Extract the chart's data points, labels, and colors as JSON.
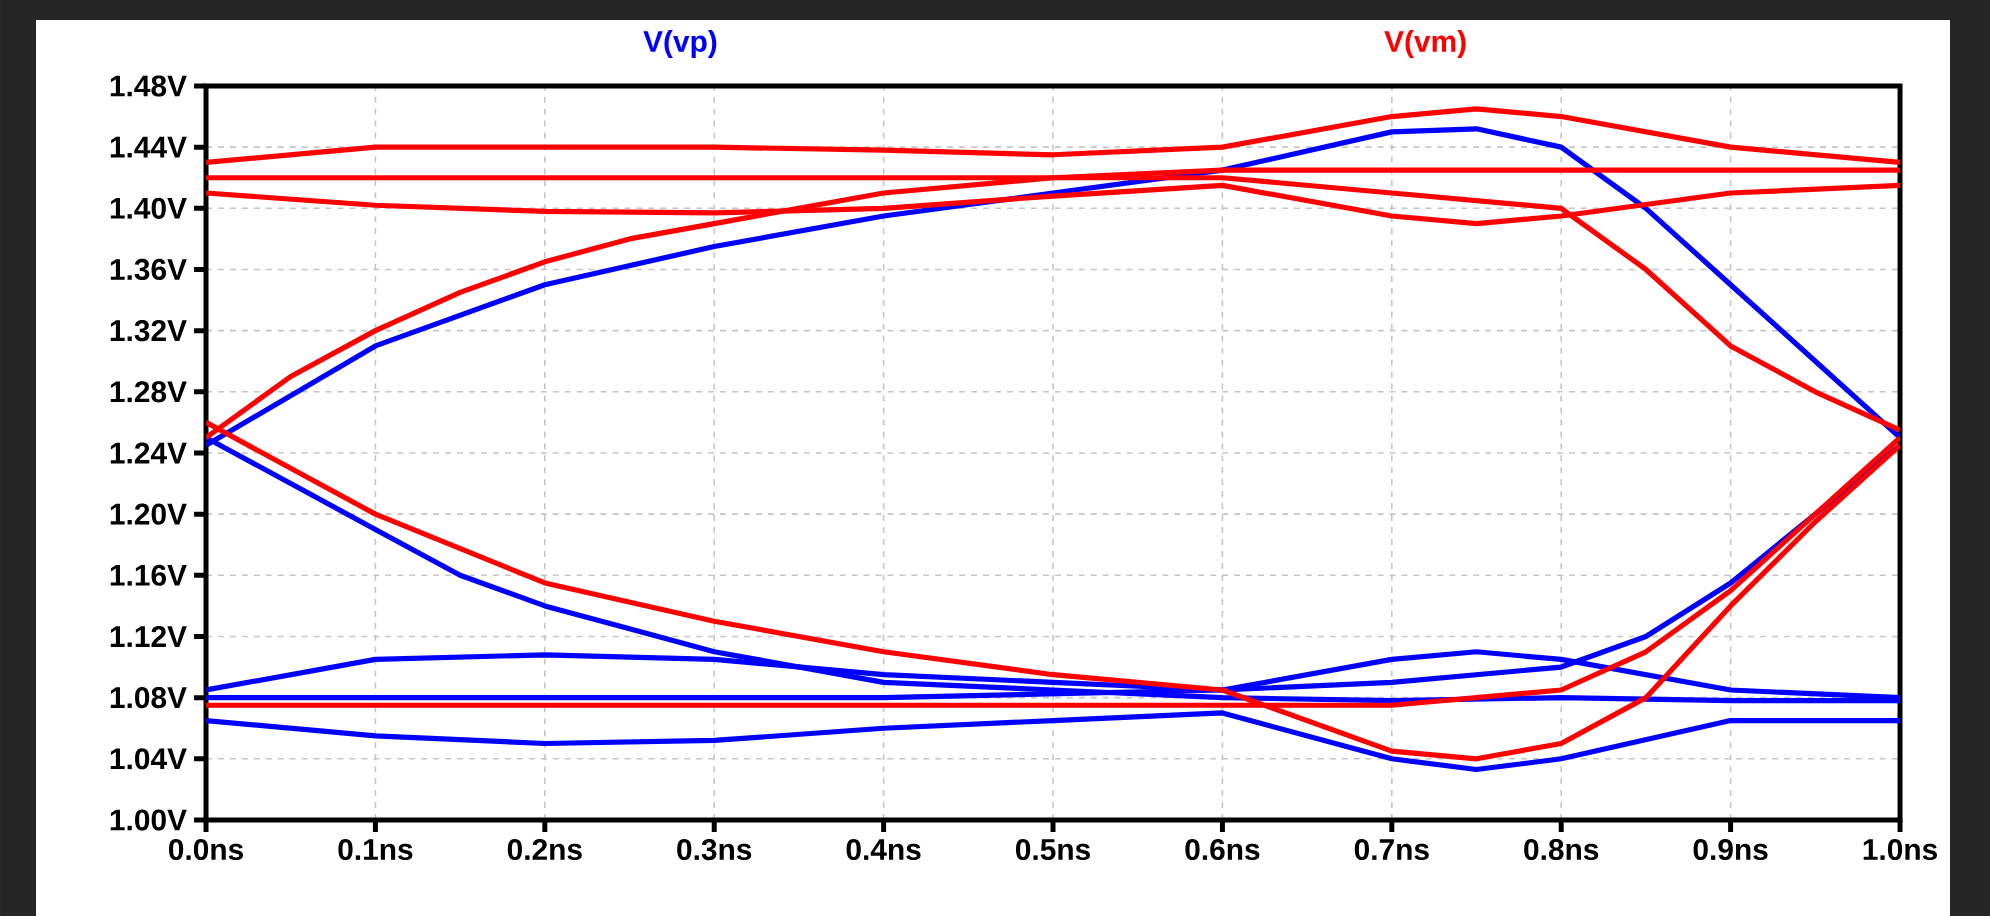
{
  "chart_data": {
    "type": "line",
    "legend": "top",
    "grid": true,
    "line_style": "solid",
    "marker": "none",
    "xlim": [
      0,
      1.0
    ],
    "ylim": [
      1.0,
      1.48
    ],
    "xticks": [
      {
        "value": 0,
        "label": "0.0ns"
      },
      {
        "value": 0.1,
        "label": "0.1ns"
      },
      {
        "value": 0.2,
        "label": "0.2ns"
      },
      {
        "value": 0.3,
        "label": "0.3ns"
      },
      {
        "value": 0.4,
        "label": "0.4ns"
      },
      {
        "value": 0.5,
        "label": "0.5ns"
      },
      {
        "value": 0.6,
        "label": "0.6ns"
      },
      {
        "value": 0.7,
        "label": "0.7ns"
      },
      {
        "value": 0.8,
        "label": "0.8ns"
      },
      {
        "value": 0.9,
        "label": "0.9ns"
      },
      {
        "value": 1.0,
        "label": "1.0ns"
      }
    ],
    "yticks": [
      {
        "value": 1.0,
        "label": "1.00V"
      },
      {
        "value": 1.04,
        "label": "1.04V"
      },
      {
        "value": 1.08,
        "label": "1.08V"
      },
      {
        "value": 1.12,
        "label": "1.12V"
      },
      {
        "value": 1.16,
        "label": "1.16V"
      },
      {
        "value": 1.2,
        "label": "1.20V"
      },
      {
        "value": 1.24,
        "label": "1.24V"
      },
      {
        "value": 1.28,
        "label": "1.28V"
      },
      {
        "value": 1.32,
        "label": "1.32V"
      },
      {
        "value": 1.36,
        "label": "1.36V"
      },
      {
        "value": 1.4,
        "label": "1.40V"
      },
      {
        "value": 1.44,
        "label": "1.44V"
      },
      {
        "value": 1.48,
        "label": "1.48V"
      }
    ],
    "series": [
      {
        "name": "V(vp)",
        "color": "#0000ff",
        "x": [
          0,
          0.05,
          0.1,
          0.15,
          0.2,
          0.25,
          0.3,
          0.35,
          0.4,
          0.5,
          0.6,
          0.7,
          0.8,
          0.9,
          1.0
        ],
        "values": [
          1.25,
          1.22,
          1.19,
          1.16,
          1.14,
          1.125,
          1.11,
          1.1,
          1.09,
          1.085,
          1.08,
          1.078,
          1.08,
          1.078,
          1.078
        ]
      },
      {
        "color": "#0000ff",
        "x": [
          0,
          0.1,
          0.2,
          0.3,
          0.4,
          0.5,
          0.6,
          0.7,
          0.75,
          0.8,
          0.9,
          1.0
        ],
        "values": [
          1.085,
          1.105,
          1.108,
          1.105,
          1.095,
          1.09,
          1.085,
          1.105,
          1.11,
          1.105,
          1.085,
          1.08
        ]
      },
      {
        "color": "#0000ff",
        "x": [
          0,
          0.1,
          0.2,
          0.3,
          0.4,
          0.5,
          0.6,
          0.7,
          0.75,
          0.8,
          0.9,
          1.0
        ],
        "values": [
          1.065,
          1.055,
          1.05,
          1.052,
          1.06,
          1.065,
          1.07,
          1.04,
          1.033,
          1.04,
          1.065,
          1.065
        ]
      },
      {
        "color": "#0000ff",
        "x": [
          0,
          0.1,
          0.2,
          0.3,
          0.4,
          0.5,
          0.6,
          0.7,
          0.75,
          0.8,
          0.85,
          0.9,
          0.95,
          1.0
        ],
        "values": [
          1.245,
          1.31,
          1.35,
          1.375,
          1.395,
          1.41,
          1.425,
          1.45,
          1.452,
          1.44,
          1.4,
          1.35,
          1.3,
          1.25
        ]
      },
      {
        "color": "#0000ff",
        "x": [
          0,
          0.2,
          0.4,
          0.6,
          0.7,
          0.8,
          0.85,
          0.9,
          0.95,
          1.0
        ],
        "values": [
          1.08,
          1.08,
          1.08,
          1.085,
          1.09,
          1.1,
          1.12,
          1.155,
          1.2,
          1.245
        ]
      },
      {
        "name": "V(vm)",
        "color": "#ff0000",
        "x": [
          0,
          0.1,
          0.2,
          0.3,
          0.4,
          0.5,
          0.6,
          0.7,
          0.75,
          0.8,
          0.9,
          1.0
        ],
        "values": [
          1.43,
          1.44,
          1.44,
          1.44,
          1.438,
          1.435,
          1.44,
          1.46,
          1.465,
          1.46,
          1.44,
          1.43
        ]
      },
      {
        "color": "#ff0000",
        "x": [
          0,
          0.1,
          0.2,
          0.3,
          0.4,
          0.5,
          0.6,
          0.7,
          0.75,
          0.8,
          0.9,
          1.0
        ],
        "values": [
          1.41,
          1.402,
          1.398,
          1.397,
          1.4,
          1.408,
          1.415,
          1.395,
          1.39,
          1.395,
          1.41,
          1.415
        ]
      },
      {
        "color": "#ff0000",
        "x": [
          0,
          0.05,
          0.1,
          0.15,
          0.2,
          0.25,
          0.3,
          0.35,
          0.4,
          0.5,
          0.6,
          0.7,
          0.8,
          0.9,
          1.0
        ],
        "values": [
          1.25,
          1.29,
          1.32,
          1.345,
          1.365,
          1.38,
          1.39,
          1.4,
          1.41,
          1.42,
          1.425,
          1.425,
          1.425,
          1.425,
          1.425
        ]
      },
      {
        "color": "#ff0000",
        "x": [
          0,
          0.1,
          0.2,
          0.3,
          0.4,
          0.5,
          0.6,
          0.7,
          0.75,
          0.8,
          0.85,
          0.9,
          0.95,
          1.0
        ],
        "values": [
          1.26,
          1.2,
          1.155,
          1.13,
          1.11,
          1.095,
          1.085,
          1.045,
          1.04,
          1.05,
          1.08,
          1.14,
          1.195,
          1.245
        ]
      },
      {
        "color": "#ff0000",
        "x": [
          0,
          0.2,
          0.4,
          0.6,
          0.7,
          0.8,
          0.85,
          0.9,
          0.95,
          1.0
        ],
        "values": [
          1.075,
          1.075,
          1.075,
          1.075,
          1.075,
          1.085,
          1.11,
          1.15,
          1.2,
          1.25
        ]
      },
      {
        "color": "#ff0000",
        "x": [
          0,
          0.2,
          0.4,
          0.6,
          0.7,
          0.8,
          0.85,
          0.9,
          0.95,
          1.0
        ],
        "values": [
          1.42,
          1.42,
          1.42,
          1.42,
          1.41,
          1.4,
          1.36,
          1.31,
          1.28,
          1.255
        ]
      }
    ]
  }
}
